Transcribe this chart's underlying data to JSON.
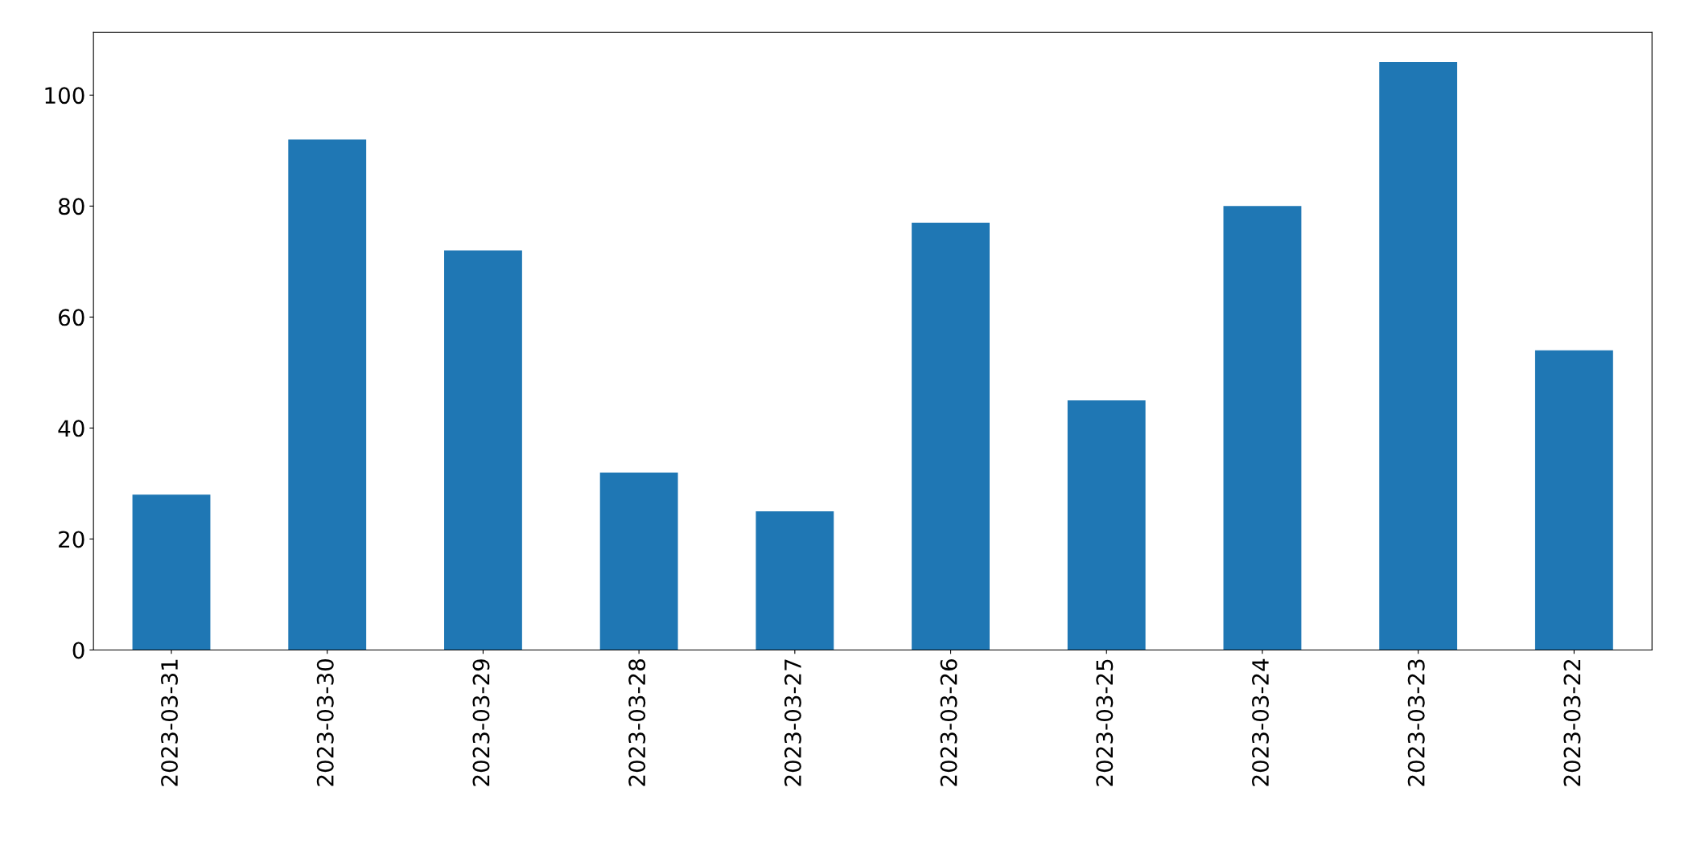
{
  "chart_data": {
    "type": "bar",
    "categories": [
      "2023-03-31",
      "2023-03-30",
      "2023-03-29",
      "2023-03-28",
      "2023-03-27",
      "2023-03-26",
      "2023-03-25",
      "2023-03-24",
      "2023-03-23",
      "2023-03-22"
    ],
    "values": [
      28,
      92,
      72,
      32,
      25,
      77,
      45,
      80,
      106,
      54
    ],
    "color": "#1f77b4",
    "ylim": [
      0,
      111.3
    ],
    "yticks": [
      0,
      20,
      40,
      60,
      80,
      100
    ],
    "grid": false,
    "legend": false
  }
}
